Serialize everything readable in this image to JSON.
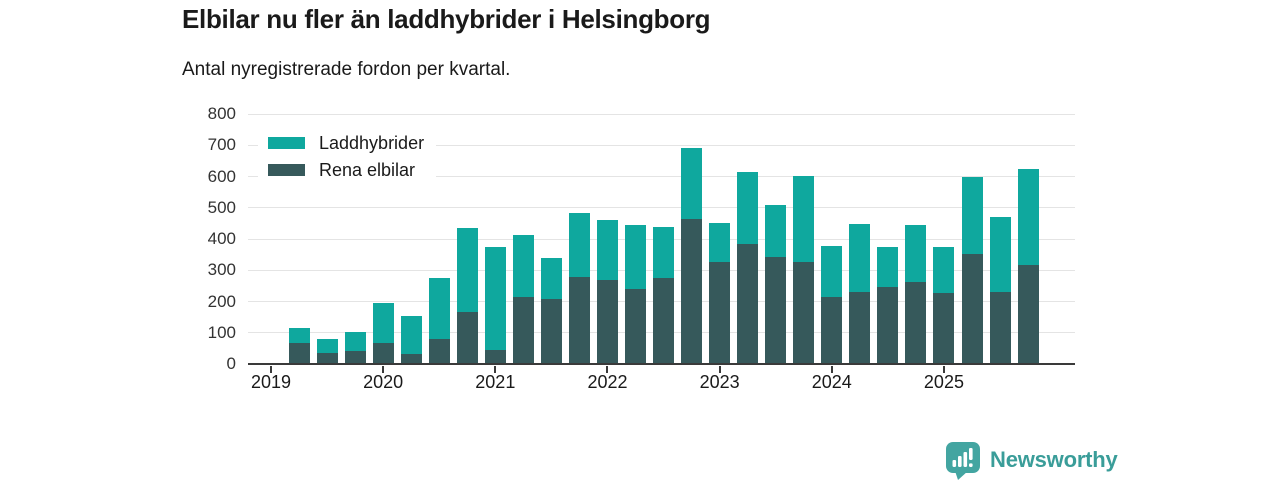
{
  "header": {
    "title": "Elbilar nu fler än laddhybrider i Helsingborg",
    "subtitle": "Antal nyregistrerade fordon per kvartal."
  },
  "colors": {
    "laddhybrider": "#0fa89e",
    "rena_elbilar": "#36595b",
    "gridline": "#e4e4e4",
    "axis": "#3a3a3a",
    "brand": "#3a9d99"
  },
  "legend": {
    "items": [
      {
        "label": "Laddhybrider",
        "color": "#0fa89e"
      },
      {
        "label": "Rena elbilar",
        "color": "#36595b"
      }
    ]
  },
  "footer": {
    "brand_name": "Newsworthy",
    "logo_icon": "bar-chart-speech-bubble"
  },
  "chart_data": {
    "type": "bar",
    "stacked": true,
    "title": "Elbilar nu fler än laddhybrider i Helsingborg",
    "subtitle": "Antal nyregistrerade fordon per kvartal.",
    "xlabel": "",
    "ylabel": "",
    "ylim": [
      0,
      800
    ],
    "y_ticks": [
      0,
      100,
      200,
      300,
      400,
      500,
      600,
      700,
      800
    ],
    "grid": "horizontal",
    "legend_position": "top-left",
    "x": [
      "2019 Q1",
      "2019 Q2",
      "2019 Q3",
      "2019 Q4",
      "2020 Q1",
      "2020 Q2",
      "2020 Q3",
      "2020 Q4",
      "2021 Q1",
      "2021 Q2",
      "2021 Q3",
      "2021 Q4",
      "2022 Q1",
      "2022 Q2",
      "2022 Q3",
      "2022 Q4",
      "2023 Q1",
      "2023 Q2",
      "2023 Q3",
      "2023 Q4",
      "2024 Q1",
      "2024 Q2",
      "2024 Q3",
      "2024 Q4",
      "2025 Q1",
      "2025 Q2",
      "2025 Q3",
      "2025 Q4"
    ],
    "x_tick_labels": [
      {
        "label": "2019",
        "index": 0
      },
      {
        "label": "2020",
        "index": 4
      },
      {
        "label": "2021",
        "index": 8
      },
      {
        "label": "2022",
        "index": 12
      },
      {
        "label": "2023",
        "index": 16
      },
      {
        "label": "2024",
        "index": 20
      },
      {
        "label": "2025",
        "index": 24
      }
    ],
    "series": [
      {
        "name": "Rena elbilar",
        "color": "#36595b",
        "values": [
          0,
          68,
          35,
          42,
          66,
          33,
          80,
          168,
          45,
          215,
          209,
          279,
          269,
          240,
          276,
          464,
          326,
          383,
          343,
          325,
          215,
          231,
          245,
          262,
          228,
          352,
          230,
          318
        ]
      },
      {
        "name": "Laddhybrider",
        "color": "#0fa89e",
        "values": [
          0,
          47,
          45,
          61,
          129,
          120,
          194,
          268,
          328,
          198,
          130,
          203,
          191,
          205,
          161,
          228,
          126,
          230,
          166,
          276,
          163,
          217,
          128,
          182,
          148,
          245,
          240,
          306
        ]
      }
    ]
  }
}
